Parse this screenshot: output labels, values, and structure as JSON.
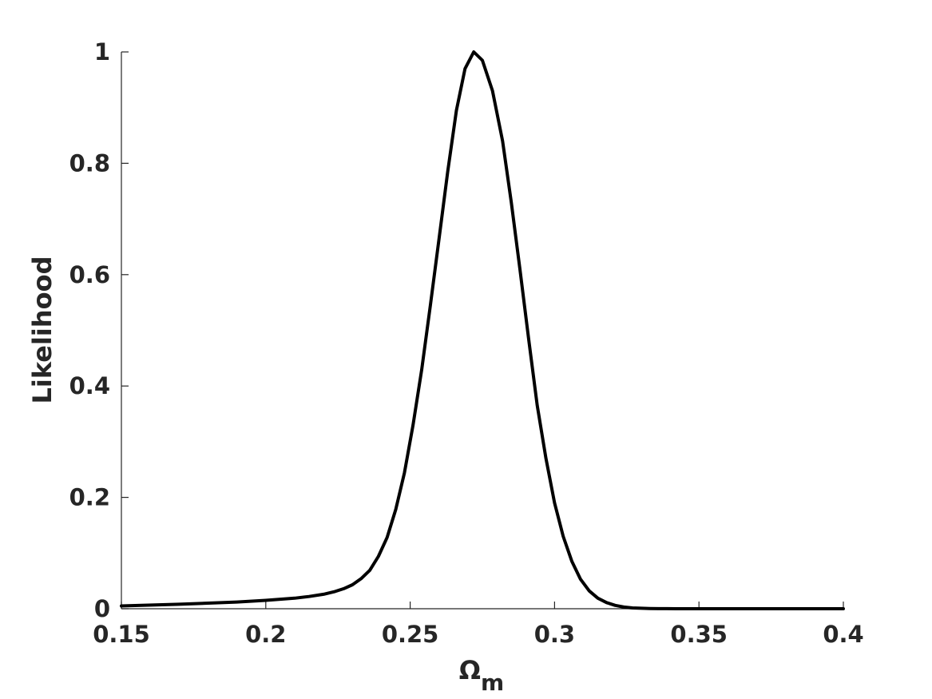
{
  "chart_data": {
    "type": "line",
    "title": "",
    "xlabel": {
      "symbol": "Ω",
      "subscript": "m"
    },
    "ylabel": "Likelihood",
    "xlim": [
      0.15,
      0.4
    ],
    "ylim": [
      0,
      1
    ],
    "xticks": [
      0.15,
      0.2,
      0.25,
      0.3,
      0.35,
      0.4
    ],
    "xtick_labels": [
      "0.15",
      "0.2",
      "0.25",
      "0.3",
      "0.35",
      "0.4"
    ],
    "yticks": [
      0,
      0.2,
      0.4,
      0.6,
      0.8,
      1
    ],
    "ytick_labels": [
      "0",
      "0.2",
      "0.4",
      "0.6",
      "0.8",
      "1"
    ],
    "grid": false,
    "legend": "none",
    "colors": {
      "line": "#000000",
      "axis": "#262626"
    },
    "series": [
      {
        "x": [
          0.15,
          0.17,
          0.19,
          0.2,
          0.21,
          0.215,
          0.22,
          0.224,
          0.227,
          0.23,
          0.233,
          0.236,
          0.239,
          0.242,
          0.245,
          0.248,
          0.251,
          0.254,
          0.257,
          0.26,
          0.263,
          0.266,
          0.269,
          0.272,
          0.275,
          0.2785,
          0.282,
          0.285,
          0.288,
          0.291,
          0.294,
          0.297,
          0.3,
          0.303,
          0.306,
          0.309,
          0.312,
          0.315,
          0.318,
          0.321,
          0.324,
          0.327,
          0.33,
          0.333,
          0.336,
          0.339,
          0.342,
          0.345,
          0.35,
          0.36,
          0.38,
          0.4
        ],
        "y": [
          0.005,
          0.008,
          0.012,
          0.015,
          0.019,
          0.022,
          0.026,
          0.031,
          0.036,
          0.043,
          0.054,
          0.069,
          0.094,
          0.128,
          0.178,
          0.244,
          0.33,
          0.43,
          0.545,
          0.665,
          0.785,
          0.895,
          0.97,
          1.0,
          0.985,
          0.93,
          0.84,
          0.73,
          0.61,
          0.485,
          0.365,
          0.27,
          0.19,
          0.13,
          0.085,
          0.053,
          0.032,
          0.019,
          0.011,
          0.006,
          0.003,
          0.0015,
          0.0008,
          0.0004,
          0.0002,
          0.0001,
          5e-05,
          3e-05,
          1e-05,
          0.0,
          0.0,
          0.0
        ]
      }
    ]
  }
}
